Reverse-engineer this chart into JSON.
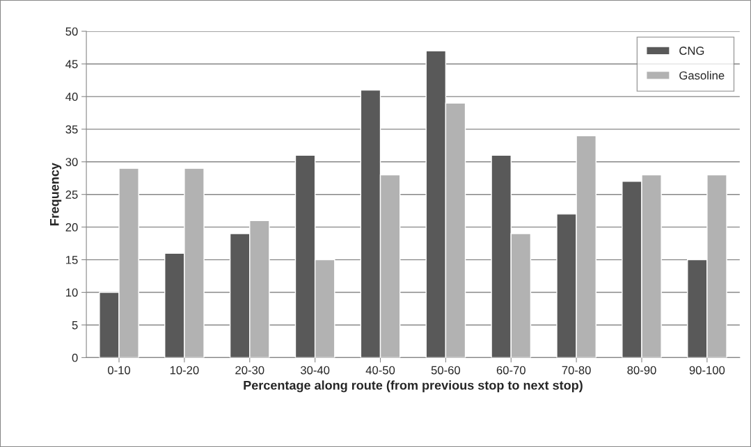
{
  "chart_data": {
    "type": "bar",
    "xlabel": "Percentage along route (from previous stop to next stop)",
    "ylabel": "Frequency",
    "categories": [
      "0-10",
      "10-20",
      "20-30",
      "30-40",
      "40-50",
      "50-60",
      "60-70",
      "70-80",
      "80-90",
      "90-100"
    ],
    "series": [
      {
        "name": "CNG",
        "color": "#595959",
        "values": [
          10,
          16,
          19,
          31,
          41,
          47,
          31,
          22,
          27,
          15
        ]
      },
      {
        "name": "Gasoline",
        "color": "#b2b2b2",
        "values": [
          29,
          29,
          21,
          15,
          28,
          39,
          19,
          34,
          28,
          28
        ]
      }
    ],
    "ylim": [
      0,
      50
    ],
    "yticks": [
      0,
      5,
      10,
      15,
      20,
      25,
      30,
      35,
      40,
      45,
      50
    ],
    "grid": "y",
    "legend": "top right"
  }
}
